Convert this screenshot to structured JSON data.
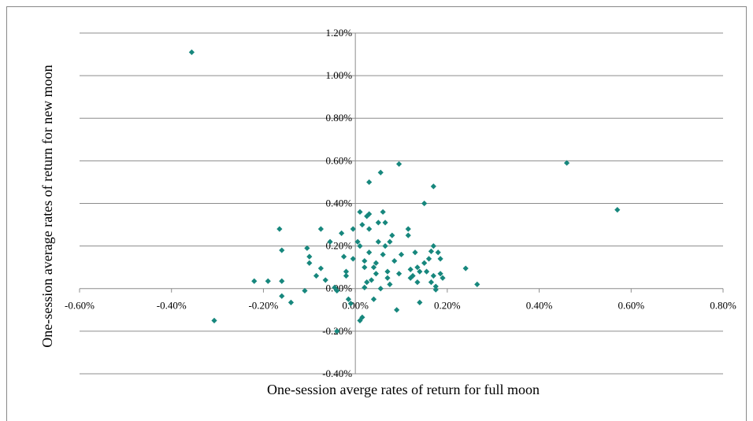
{
  "chart_data": {
    "type": "scatter",
    "x_label": "One-session averge rates of return for full moon",
    "y_label": "One-session average rates of return for new moon",
    "color": "#17877d",
    "xlim": [
      -0.6,
      0.8
    ],
    "ylim": [
      -0.4,
      1.2
    ],
    "xticks": [
      {
        "value": -0.6,
        "label": "-0.60%"
      },
      {
        "value": -0.4,
        "label": "-0.40%"
      },
      {
        "value": -0.2,
        "label": "-0.20%"
      },
      {
        "value": 0,
        "label": "0.00%"
      },
      {
        "value": 0.2,
        "label": "0.20%"
      },
      {
        "value": 0.4,
        "label": "0.40%"
      },
      {
        "value": 0.6,
        "label": "0.60%"
      },
      {
        "value": 0.8,
        "label": "0.80%"
      }
    ],
    "yticks": [
      {
        "value": -0.4,
        "label": "-0.40%"
      },
      {
        "value": -0.2,
        "label": "-0.20%"
      },
      {
        "value": 0,
        "label": "0.00%"
      },
      {
        "value": 0.2,
        "label": "0.20%"
      },
      {
        "value": 0.4,
        "label": "0.40%"
      },
      {
        "value": 0.6,
        "label": "0.60%"
      },
      {
        "value": 0.8,
        "label": "0.80%"
      },
      {
        "value": 1.0,
        "label": "1.00%"
      },
      {
        "value": 1.2,
        "label": "1.20%"
      }
    ],
    "grid": true,
    "x": [
      -0.356,
      -0.307,
      0.46,
      0.57,
      0.095,
      0.055,
      0.17,
      0.03,
      0.15,
      0.265,
      0.24,
      -0.22,
      -0.19,
      -0.16,
      -0.16,
      -0.16,
      -0.14,
      -0.165,
      -0.105,
      -0.1,
      -0.1,
      -0.11,
      -0.085,
      -0.075,
      -0.075,
      -0.065,
      -0.055,
      -0.045,
      -0.04,
      -0.04,
      -0.03,
      -0.025,
      -0.02,
      -0.02,
      -0.015,
      -0.01,
      -0.005,
      -0.005,
      0.005,
      0.01,
      0.01,
      0.01,
      0.015,
      0.015,
      0.02,
      0.02,
      0.02,
      0.025,
      0.025,
      0.03,
      0.03,
      0.03,
      0.035,
      0.04,
      0.04,
      0.045,
      0.045,
      0.05,
      0.05,
      0.055,
      0.06,
      0.06,
      0.065,
      0.065,
      0.07,
      0.07,
      0.075,
      0.075,
      0.08,
      0.085,
      0.09,
      0.095,
      0.1,
      0.115,
      0.115,
      0.12,
      0.12,
      0.125,
      0.13,
      0.135,
      0.135,
      0.14,
      0.14,
      0.15,
      0.155,
      0.16,
      0.165,
      0.165,
      0.17,
      0.17,
      0.175,
      0.18,
      0.185,
      0.185,
      0.19,
      0.175
    ],
    "values": [
      1.11,
      -0.15,
      0.59,
      0.37,
      0.585,
      0.545,
      0.48,
      0.5,
      0.4,
      0.02,
      0.095,
      0.035,
      0.035,
      0.035,
      -0.035,
      0.18,
      -0.065,
      0.28,
      0.19,
      0.15,
      0.12,
      -0.01,
      0.06,
      0.095,
      0.28,
      0.04,
      0.22,
      0.005,
      -0.01,
      -0.2,
      0.26,
      0.15,
      0.08,
      0.06,
      -0.05,
      -0.07,
      0.14,
      0.28,
      0.22,
      0.36,
      0.2,
      -0.15,
      -0.135,
      0.3,
      0.13,
      0.1,
      0.005,
      0.34,
      0.03,
      0.35,
      0.28,
      0.17,
      0.04,
      -0.05,
      0.1,
      0.12,
      0.07,
      0.31,
      0.22,
      0.0,
      0.36,
      0.16,
      0.31,
      0.2,
      0.08,
      0.05,
      0.22,
      0.02,
      0.25,
      0.13,
      -0.1,
      0.07,
      0.16,
      0.28,
      0.25,
      0.05,
      0.09,
      0.06,
      0.17,
      0.1,
      0.03,
      -0.065,
      0.08,
      0.12,
      0.08,
      0.14,
      0.03,
      0.175,
      0.2,
      0.06,
      0.01,
      0.17,
      0.14,
      0.07,
      0.05,
      -0.005
    ]
  }
}
